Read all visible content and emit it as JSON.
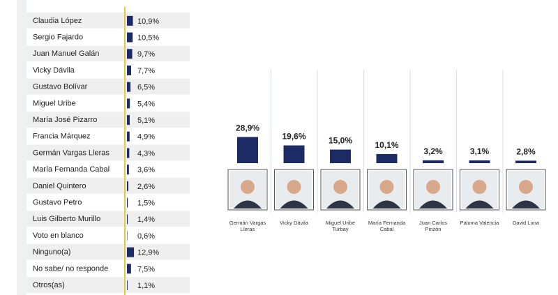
{
  "chart_data": [
    {
      "type": "bar",
      "orientation": "horizontal",
      "color": "#1c2b63",
      "categories": [
        "Claudia López",
        "Sergio Fajardo",
        "Juan Manuel Galán",
        "Vicky Dávila",
        "Gustavo Bolívar",
        "Miguel Uribe",
        "María José Pizarro",
        "Francia Márquez",
        "Germán Vargas Lleras",
        "María Fernanda Cabal",
        "Daniel Quintero",
        "Gustavo Petro",
        "Luis Gilberto Murillo",
        "Voto en blanco",
        "Ninguno(a)",
        "No sabe/ no responde",
        "Otros(as)"
      ],
      "values": [
        10.9,
        10.5,
        9.7,
        7.7,
        6.5,
        5.4,
        5.1,
        4.9,
        4.3,
        3.6,
        2.6,
        1.5,
        1.4,
        0.6,
        12.9,
        7.5,
        1.1
      ],
      "value_labels": [
        "10,9%",
        "10,5%",
        "9,7%",
        "7,7%",
        "6,5%",
        "5,4%",
        "5,1%",
        "4,9%",
        "4,3%",
        "3,6%",
        "2,6%",
        "1,5%",
        "1,4%",
        "0,6%",
        "12,9%",
        "7,5%",
        "1,1%"
      ]
    },
    {
      "type": "bar",
      "color": "#1c2b63",
      "categories": [
        "Germán Vargas Lleras",
        "Vicky Dávila",
        "Miguel Uribe Turbay",
        "María Fernanda Cabal",
        "Juan Carlos Pinzón",
        "Paloma Valencia",
        "David Luna"
      ],
      "values": [
        28.9,
        19.6,
        15.0,
        10.1,
        3.2,
        3.1,
        2.8
      ],
      "value_labels": [
        "28,9%",
        "19,6%",
        "15,0%",
        "10,1%",
        "3,2%",
        "3,1%",
        "2,8%"
      ]
    }
  ]
}
